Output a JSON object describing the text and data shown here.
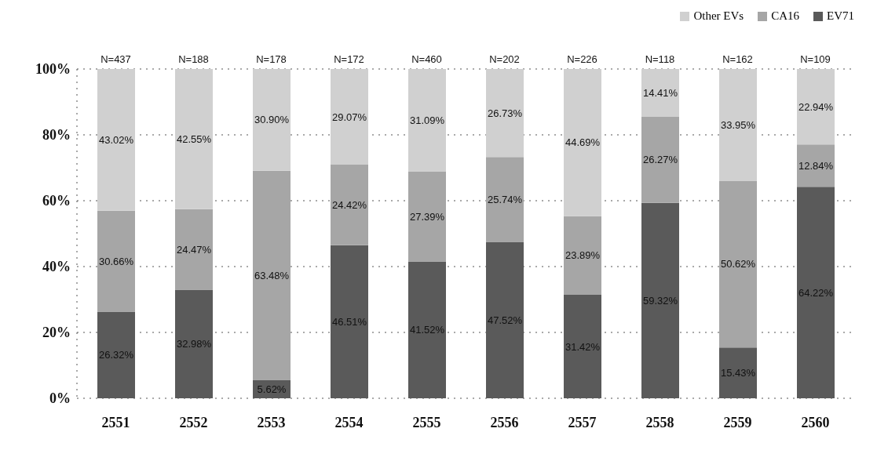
{
  "chart_data": {
    "type": "bar",
    "stacked": true,
    "categories": [
      "2551",
      "2552",
      "2553",
      "2554",
      "2555",
      "2556",
      "2557",
      "2558",
      "2559",
      "2560"
    ],
    "series": [
      {
        "name": "EV71",
        "color": "#5a5a5a",
        "values": [
          26.32,
          32.98,
          5.62,
          46.51,
          41.52,
          47.52,
          31.42,
          59.32,
          15.43,
          64.22
        ],
        "value_labels": [
          "26.32%",
          "32.98%",
          "5.62%",
          "46.51%",
          "41.52%",
          "47.52%",
          "31.42%",
          "59.32%",
          "15.43%",
          "64.22%"
        ]
      },
      {
        "name": "CA16",
        "color": "#a6a6a6",
        "values": [
          30.66,
          24.47,
          63.48,
          24.42,
          27.39,
          25.74,
          23.89,
          26.27,
          50.62,
          12.84
        ],
        "value_labels": [
          "30.66%",
          "24.47%",
          "63.48%",
          "24.42%",
          "27.39%",
          "25.74%",
          "23.89%",
          "26.27%",
          "50.62%",
          "12.84%"
        ]
      },
      {
        "name": "Other EVs",
        "color": "#d0d0d0",
        "values": [
          43.02,
          42.55,
          30.9,
          29.07,
          31.09,
          26.73,
          44.69,
          14.41,
          33.95,
          22.94
        ],
        "value_labels": [
          "43.02%",
          "42.55%",
          "30.90%",
          "29.07%",
          "31.09%",
          "26.73%",
          "44.69%",
          "14.41%",
          "33.95%",
          "22.94%"
        ]
      }
    ],
    "ylim": [
      0,
      100
    ],
    "yticks": [
      {
        "value": 0,
        "label": "0%"
      },
      {
        "value": 20,
        "label": "20%"
      },
      {
        "value": 40,
        "label": "40%"
      },
      {
        "value": 60,
        "label": "60%"
      },
      {
        "value": 80,
        "label": "80%"
      },
      {
        "value": 100,
        "label": "100%"
      }
    ],
    "grid": "y",
    "legend": "top right",
    "annotations": [
      {
        "text": "N=437",
        "x": "2551",
        "y": 100
      },
      {
        "text": "N=188",
        "x": "2552",
        "y": 100
      },
      {
        "text": "N=178",
        "x": "2553",
        "y": 100
      },
      {
        "text": "N=172",
        "x": "2554",
        "y": 100
      },
      {
        "text": "N=460",
        "x": "2555",
        "y": 100
      },
      {
        "text": "N=202",
        "x": "2556",
        "y": 100
      },
      {
        "text": "N=226",
        "x": "2557",
        "y": 100
      },
      {
        "text": "N=118",
        "x": "2558",
        "y": 100
      },
      {
        "text": "N=162",
        "x": "2559",
        "y": 100
      },
      {
        "text": "N=109",
        "x": "2560",
        "y": 100
      }
    ]
  }
}
